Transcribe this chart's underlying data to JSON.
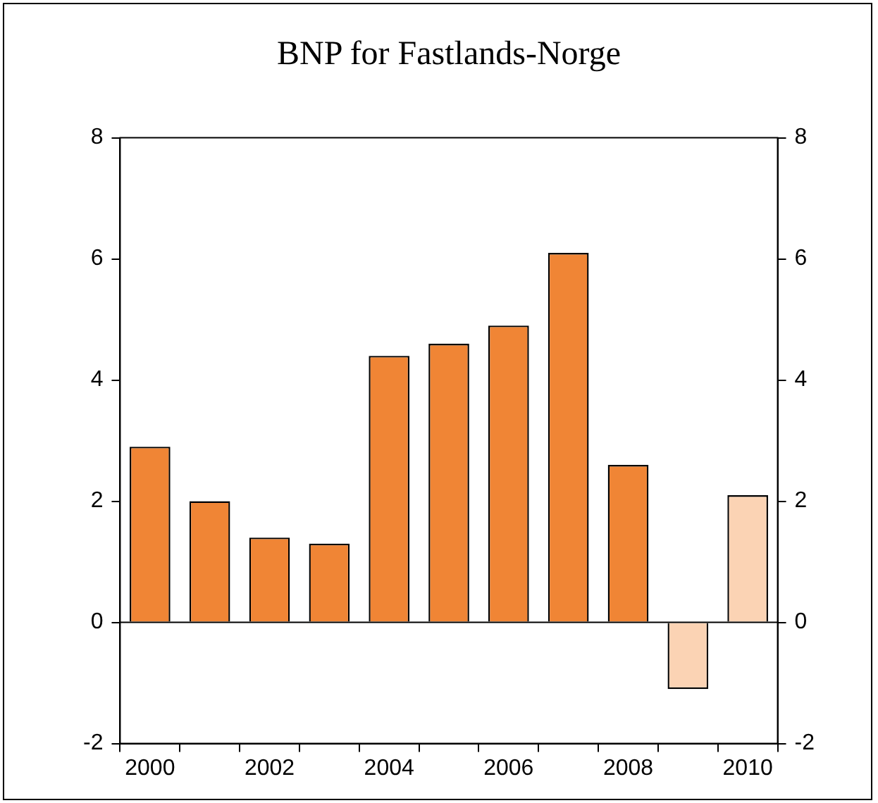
{
  "chart_data": {
    "type": "bar",
    "title": "BNP for Fastlands-Norge",
    "categories": [
      "2000",
      null,
      "2002",
      null,
      "2004",
      null,
      "2006",
      null,
      "2008",
      null,
      "2010"
    ],
    "values": [
      2.9,
      2.0,
      1.4,
      1.3,
      4.4,
      4.6,
      4.9,
      6.1,
      2.6,
      -1.1,
      2.1
    ],
    "colors": [
      "#f08535",
      "#f08535",
      "#f08535",
      "#f08535",
      "#f08535",
      "#f08535",
      "#f08535",
      "#f08535",
      "#f08535",
      "#fbd3b4",
      "#fbd3b4"
    ],
    "ylim": [
      -2,
      8
    ],
    "yticks": [
      -2,
      0,
      2,
      4,
      6,
      8
    ],
    "y2lim": [
      -2,
      8
    ],
    "y2ticks": [
      -2,
      0,
      2,
      4,
      6,
      8
    ],
    "ref_lines": [
      {
        "axis": "y",
        "value": 0,
        "color": "#000000"
      }
    ],
    "grid": false,
    "legend": false
  }
}
